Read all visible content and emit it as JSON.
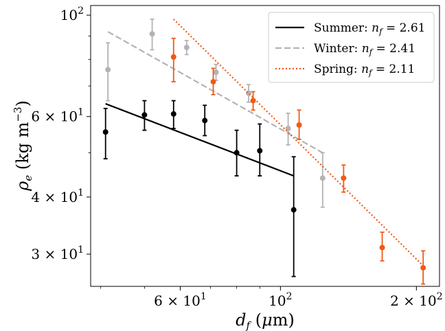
{
  "chart_data": {
    "type": "scatter",
    "title": "",
    "xlabel": "d_f (μm)",
    "ylabel": "ρ_e (kg m⁻³)",
    "xscale": "log",
    "yscale": "log",
    "xlim": [
      38,
      225
    ],
    "ylim": [
      25.5,
      105
    ],
    "grid": false,
    "legend_position": "top-right",
    "x_ticks": [
      {
        "value": 60,
        "label": "6 × 10¹"
      },
      {
        "value": 100,
        "label": "10²"
      },
      {
        "value": 200,
        "label": "2 × 10²"
      }
    ],
    "y_ticks": [
      {
        "value": 30,
        "label": "3 × 10¹"
      },
      {
        "value": 40,
        "label": "4 × 10¹"
      },
      {
        "value": 60,
        "label": "6 × 10¹"
      },
      {
        "value": 100,
        "label": "10²"
      }
    ],
    "series": [
      {
        "name": "Summer",
        "fit_label": "Summer: n_f = 2.61",
        "color": "#000000",
        "fit_style": "solid",
        "points": [
          {
            "x": 41,
            "y": 55.5,
            "lo": 48.5,
            "hi": 62.5
          },
          {
            "x": 50,
            "y": 60.5,
            "lo": 56.0,
            "hi": 65.0
          },
          {
            "x": 58,
            "y": 60.8,
            "lo": 56.5,
            "hi": 65.0
          },
          {
            "x": 68,
            "y": 58.8,
            "lo": 54.5,
            "hi": 63.5
          },
          {
            "x": 80,
            "y": 50.0,
            "lo": 44.5,
            "hi": 56.0
          },
          {
            "x": 90,
            "y": 50.5,
            "lo": 44.5,
            "hi": 57.8
          },
          {
            "x": 107,
            "y": 37.5,
            "lo": 26.8,
            "hi": 49.0
          }
        ],
        "fit": {
          "x": [
            41,
            107
          ],
          "y": [
            64.0,
            44.5
          ]
        }
      },
      {
        "name": "Winter",
        "fit_label": "Winter: n_f = 2.41",
        "color": "#b3b3b3",
        "fit_style": "dashed",
        "points": [
          {
            "x": 41.5,
            "y": 76.0,
            "lo": 65.0,
            "hi": 87.0
          },
          {
            "x": 52,
            "y": 91.0,
            "lo": 84.0,
            "hi": 98.0
          },
          {
            "x": 62,
            "y": 85.0,
            "lo": 82.0,
            "hi": 88.0
          },
          {
            "x": 72,
            "y": 75.0,
            "lo": 72.0,
            "hi": 78.0
          },
          {
            "x": 85,
            "y": 67.5,
            "lo": 64.5,
            "hi": 70.5
          },
          {
            "x": 104,
            "y": 56.5,
            "lo": 52.0,
            "hi": 61.0
          },
          {
            "x": 124,
            "y": 44.0,
            "lo": 38.0,
            "hi": 50.0
          }
        ],
        "fit": {
          "x": [
            41.5,
            124
          ],
          "y": [
            92.0,
            50.0
          ]
        }
      },
      {
        "name": "Spring",
        "fit_label": "Spring: n_f = 2.11",
        "color": "#f05a14",
        "fit_style": "dotted",
        "points": [
          {
            "x": 58,
            "y": 81.0,
            "lo": 71.5,
            "hi": 89.0
          },
          {
            "x": 71,
            "y": 71.5,
            "lo": 67.0,
            "hi": 76.5
          },
          {
            "x": 87,
            "y": 65.0,
            "lo": 62.0,
            "hi": 68.0
          },
          {
            "x": 110,
            "y": 57.5,
            "lo": 53.5,
            "hi": 62.0
          },
          {
            "x": 138,
            "y": 44.0,
            "lo": 41.0,
            "hi": 47.0
          },
          {
            "x": 168,
            "y": 31.0,
            "lo": 29.0,
            "hi": 33.5
          },
          {
            "x": 207,
            "y": 28.0,
            "lo": 25.8,
            "hi": 30.5
          }
        ],
        "fit": {
          "x": [
            58,
            207
          ],
          "y": [
            98.0,
            28.3
          ]
        }
      }
    ]
  }
}
